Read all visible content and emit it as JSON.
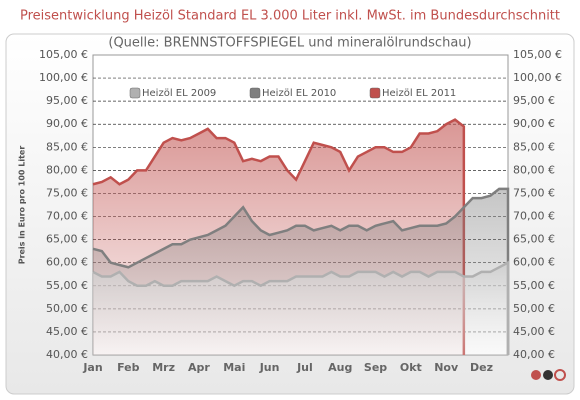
{
  "chart_data": {
    "type": "area",
    "title": "Preisentwicklung Heizöl Standard EL 3.000 Liter inkl. MwSt. im Bundesdurchschnitt",
    "subtitle": "(Quelle: BRENNSTOFFSPIEGEL und mineralölrundschau)",
    "y_label": "Preis in Euro pro 100 Liter",
    "categories": [
      "Jan",
      null,
      null,
      null,
      "Feb",
      null,
      null,
      null,
      "Mrz",
      null,
      null,
      null,
      "Apr",
      null,
      null,
      null,
      "Mai",
      null,
      null,
      null,
      "Jun",
      null,
      null,
      null,
      "Jul",
      null,
      null,
      null,
      "Aug",
      null,
      null,
      null,
      "Sep",
      null,
      null,
      null,
      "Okt",
      null,
      null,
      null,
      "Nov",
      null,
      null,
      null,
      "Dez",
      null,
      null,
      null
    ],
    "series": [
      {
        "name": "Heizöl EL 2011",
        "color": "#c0504d",
        "values": [
          77,
          77.5,
          78.5,
          77,
          78,
          80,
          80,
          83,
          86,
          87,
          86.5,
          87,
          88,
          89,
          87,
          87,
          86,
          82,
          82.5,
          82,
          83,
          83,
          80,
          78,
          82,
          86,
          85.5,
          85,
          84,
          80,
          83,
          84,
          85,
          85,
          84,
          84,
          85,
          88,
          88,
          88.5,
          90,
          91,
          89.5,
          null,
          null,
          null,
          null,
          null
        ]
      },
      {
        "name": "Heizöl EL 2010",
        "color": "#7f7f7f",
        "values": [
          63,
          62.5,
          60,
          59.5,
          59,
          60,
          61,
          62,
          63,
          64,
          64,
          65,
          65.5,
          66,
          67,
          68,
          70,
          72,
          69,
          67,
          66,
          66.5,
          67,
          68,
          68,
          67,
          67.5,
          68,
          67,
          68,
          68,
          67,
          68,
          68.5,
          69,
          67,
          67.5,
          68,
          68,
          68,
          68.5,
          70,
          72,
          74,
          74,
          74.5,
          76,
          76
        ]
      },
      {
        "name": "Heizöl EL 2009",
        "color": "#b0b0b0",
        "values": [
          58,
          57,
          57,
          58,
          56,
          55,
          55,
          56,
          55,
          55,
          56,
          56,
          56,
          56,
          57,
          56,
          55,
          56,
          56,
          55,
          56,
          56,
          56,
          57,
          57,
          57,
          57,
          58,
          57,
          57,
          58,
          58,
          58,
          57,
          58,
          57,
          58,
          58,
          57,
          58,
          58,
          58,
          57,
          57,
          58,
          58,
          59,
          60
        ]
      }
    ],
    "legend_order": [
      2,
      1,
      0
    ],
    "ylim": [
      40,
      105
    ],
    "yticks": [
      {
        "value": 40,
        "label": "40,00 €"
      },
      {
        "value": 45,
        "label": "45,00 €"
      },
      {
        "value": 50,
        "label": "50,00 €"
      },
      {
        "value": 55,
        "label": "55,00 €"
      },
      {
        "value": 60,
        "label": "60,00 €"
      },
      {
        "value": 65,
        "label": "65,00 €"
      },
      {
        "value": 70,
        "label": "70,00 €"
      },
      {
        "value": 75,
        "label": "75,00 €"
      },
      {
        "value": 80,
        "label": "80,00 €"
      },
      {
        "value": 85,
        "label": "85,00 €"
      },
      {
        "value": 90,
        "label": "90,00 €"
      },
      {
        "value": 95,
        "label": "95,00 €"
      },
      {
        "value": 100,
        "label": "100,00 €"
      },
      {
        "value": 105,
        "label": "105,00 €"
      }
    ],
    "y2lim": [
      40,
      105
    ],
    "y2ticks": [
      {
        "value": 40,
        "label": "40,00 €"
      },
      {
        "value": 45,
        "label": "45,00 €"
      },
      {
        "value": 50,
        "label": "50,00 €"
      },
      {
        "value": 55,
        "label": "55,00 €"
      },
      {
        "value": 60,
        "label": "60,00 €"
      },
      {
        "value": 65,
        "label": "65,00 €"
      },
      {
        "value": 70,
        "label": "70,00 €"
      },
      {
        "value": 75,
        "label": "75,00 €"
      },
      {
        "value": 80,
        "label": "80,00 €"
      },
      {
        "value": 85,
        "label": "85,00 €"
      },
      {
        "value": 90,
        "label": "90,00 €"
      },
      {
        "value": 95,
        "label": "95,00 €"
      },
      {
        "value": 100,
        "label": "100,00 €"
      },
      {
        "value": 105,
        "label": "105,00 €"
      }
    ],
    "grid": true
  }
}
